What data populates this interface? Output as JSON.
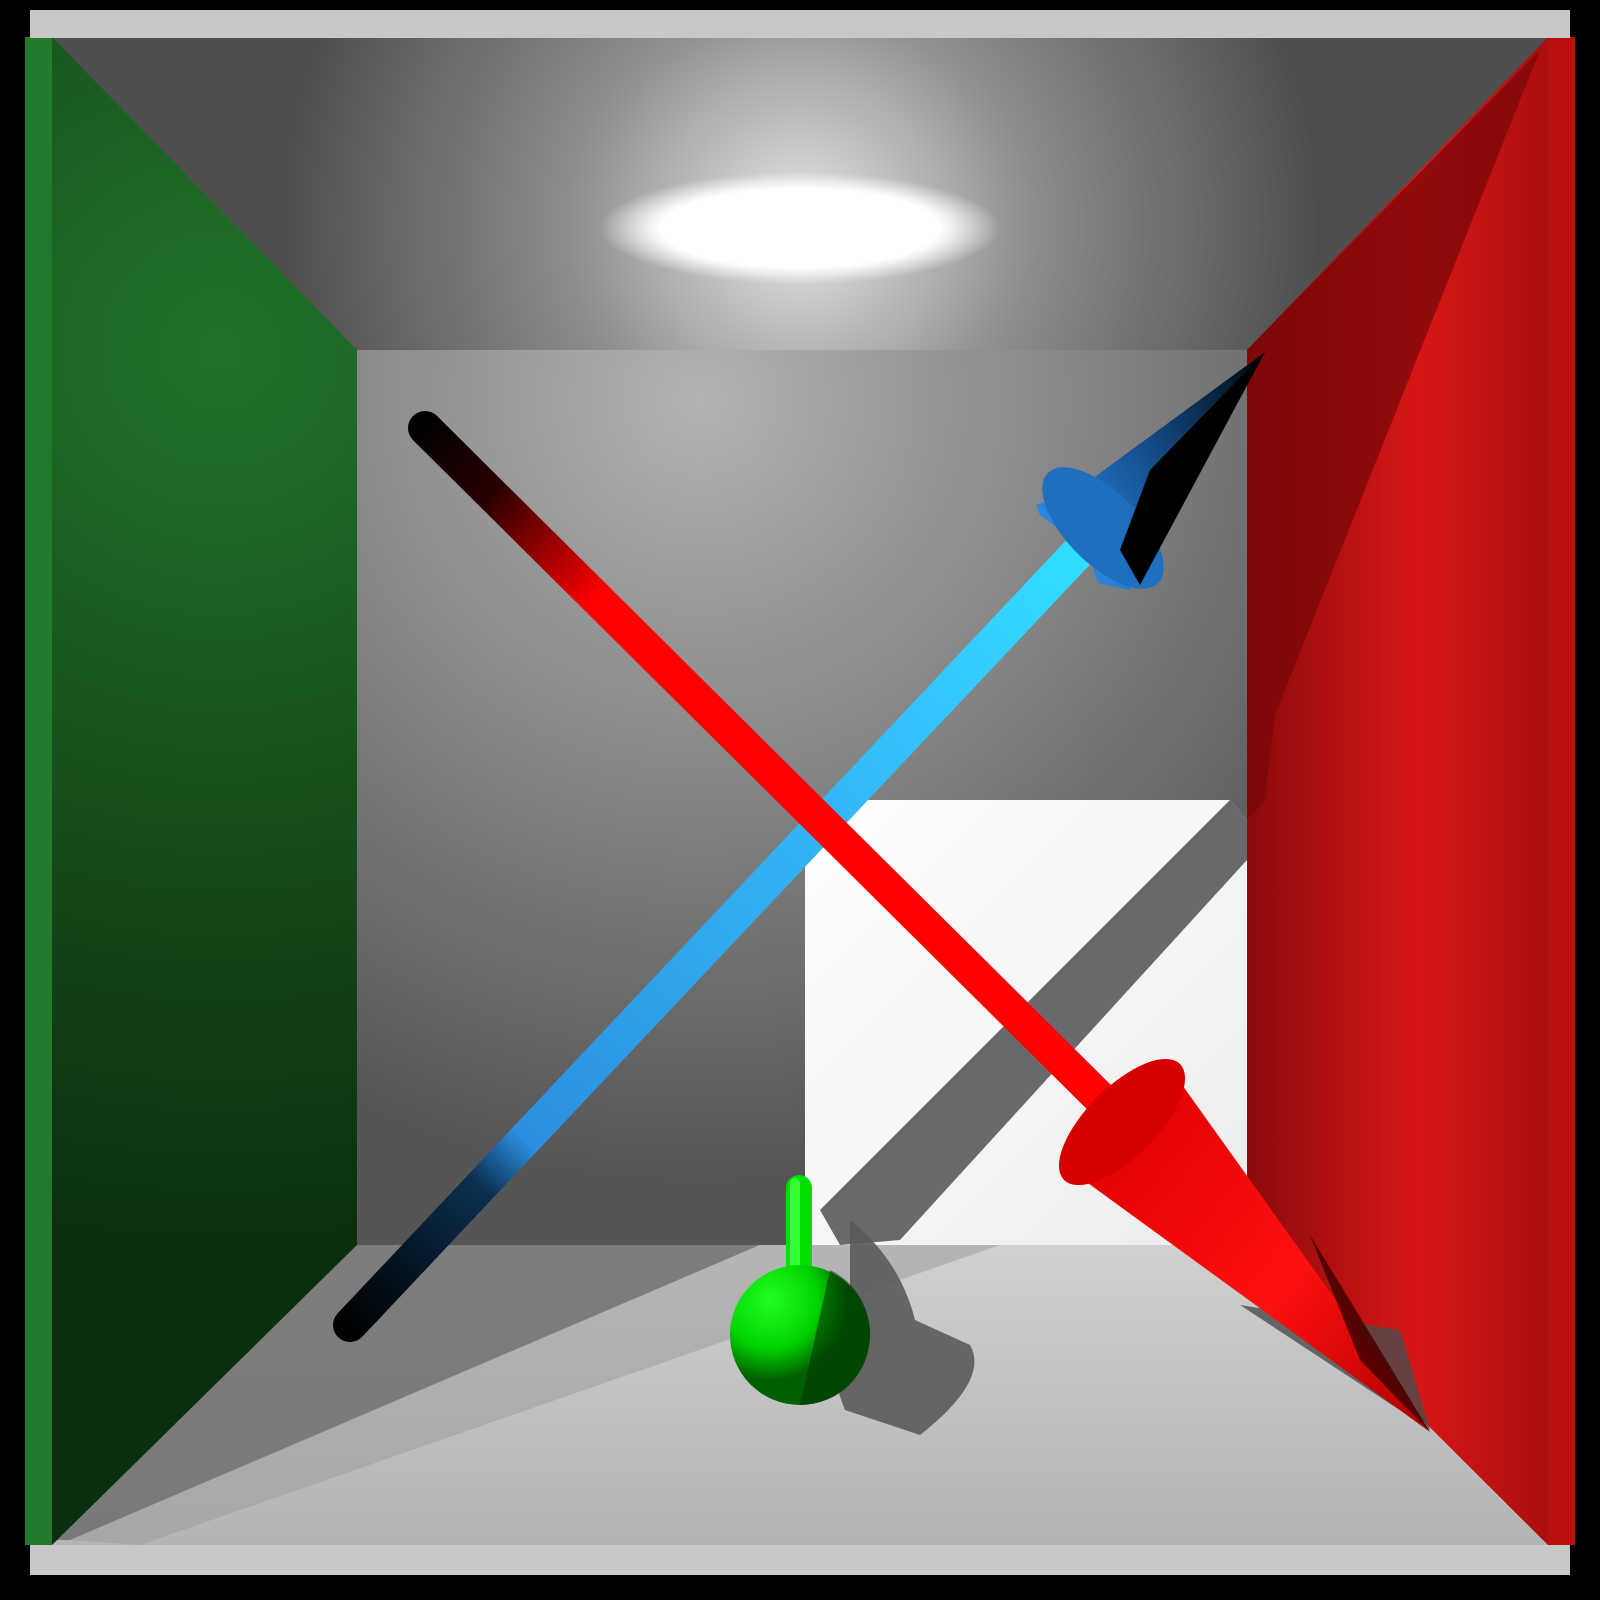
{
  "scene": {
    "kind": "3d-render",
    "subject": "cornell-box",
    "objects": [
      {
        "name": "red-arrow",
        "color": "#ff0000",
        "direction": "top-left-to-bottom-right"
      },
      {
        "name": "blue-arrow",
        "color": "#2b9cf0",
        "direction": "bottom-left-to-top-right"
      },
      {
        "name": "green-arrow",
        "color": "#00ee00",
        "direction": "up-toward-camera"
      }
    ]
  },
  "colors": {
    "background": "#000000",
    "frame_bar": "#c8c8c8",
    "ceiling": "#8a8a8a",
    "back_wall": "#9a9a9a",
    "floor": "#bdbdbd",
    "left_wall": "#1e6e28",
    "right_wall": "#c01414",
    "light": "#ffffff"
  }
}
